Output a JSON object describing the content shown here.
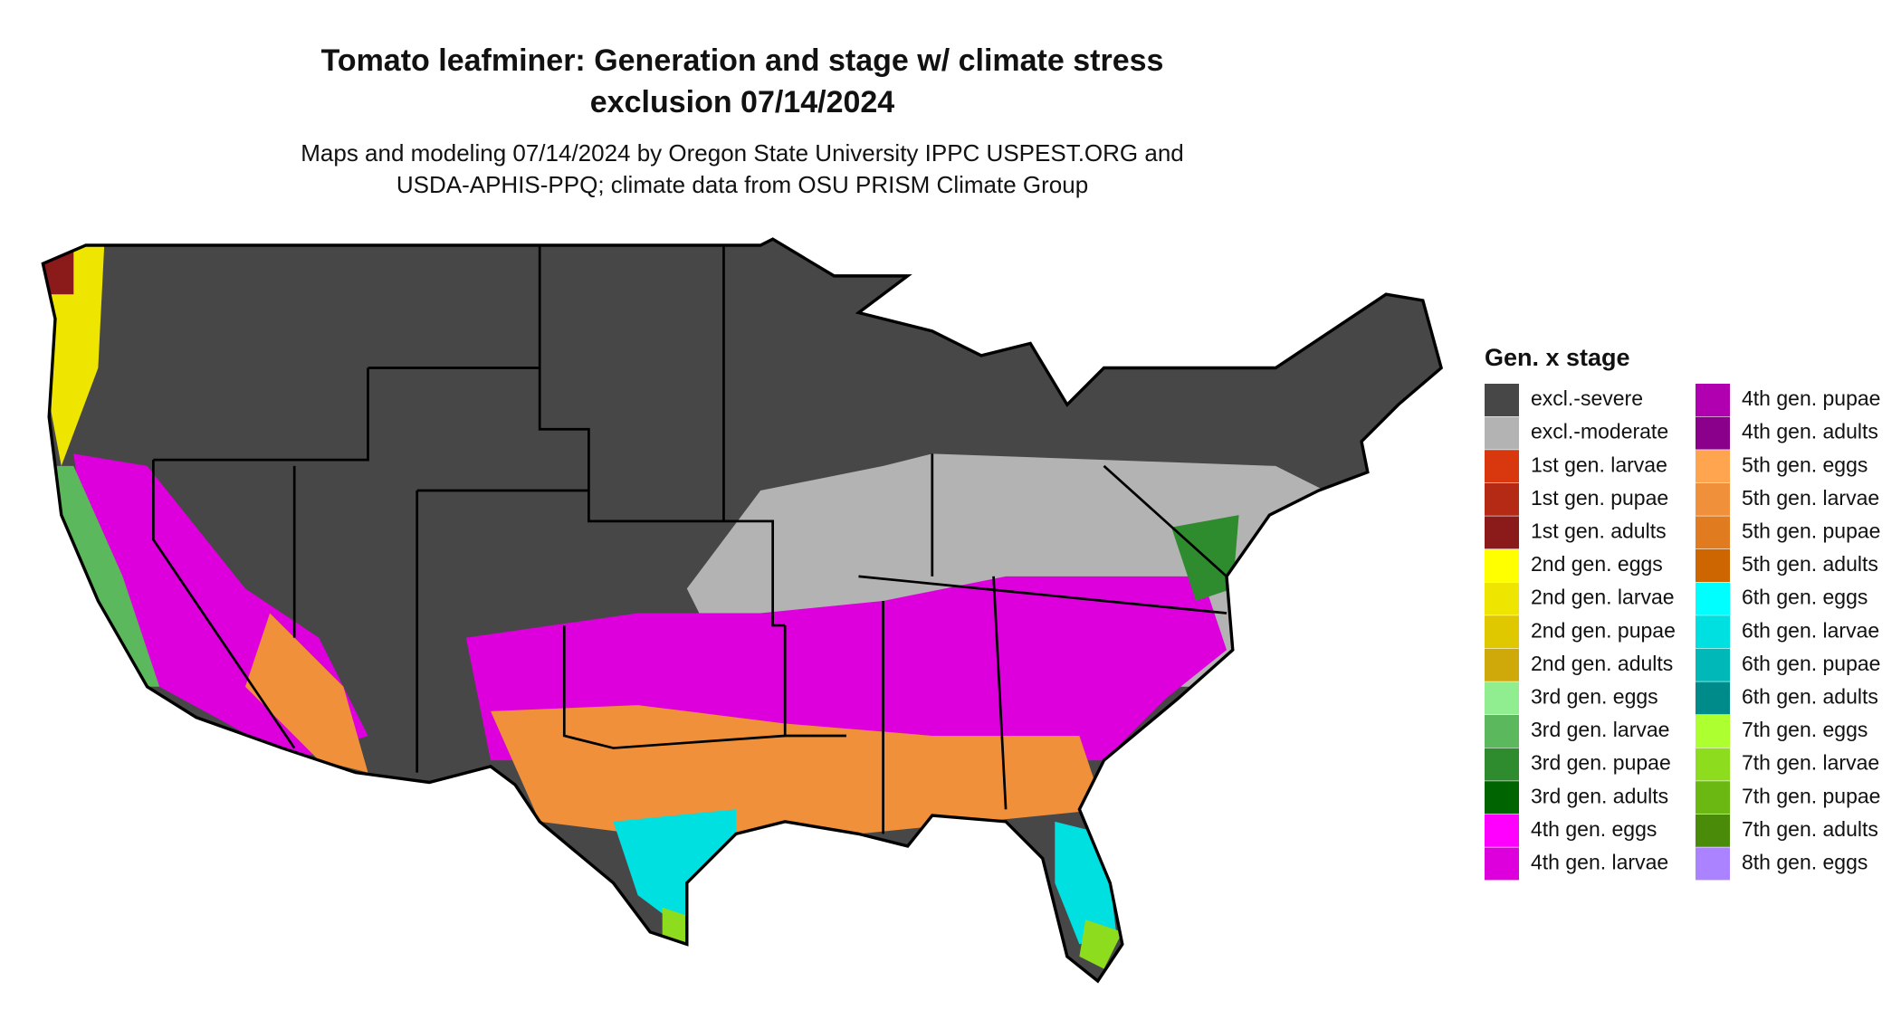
{
  "title": [
    "Tomato leafminer: Generation and stage w/ climate stress",
    "exclusion 07/14/2024"
  ],
  "subtitle": [
    "Maps and modeling 07/14/2024 by Oregon State University IPPC USPEST.ORG and",
    "USDA-APHIS-PPQ; climate data from OSU PRISM Climate Group"
  ],
  "legend": {
    "title": "Gen. x stage",
    "items": [
      {
        "label": "excl.-severe",
        "color": "#474747"
      },
      {
        "label": "excl.-moderate",
        "color": "#b3b3b3"
      },
      {
        "label": "1st gen. larvae",
        "color": "#d9380f"
      },
      {
        "label": "1st gen. pupae",
        "color": "#b52a14"
      },
      {
        "label": "1st gen. adults",
        "color": "#8b1a1a"
      },
      {
        "label": "2nd gen. eggs",
        "color": "#ffff00"
      },
      {
        "label": "2nd gen. larvae",
        "color": "#eee600"
      },
      {
        "label": "2nd gen. pupae",
        "color": "#dfc800"
      },
      {
        "label": "2nd gen. adults",
        "color": "#cfa80a"
      },
      {
        "label": "3rd gen. eggs",
        "color": "#90ee90"
      },
      {
        "label": "3rd gen. larvae",
        "color": "#5cb85c"
      },
      {
        "label": "3rd gen. pupae",
        "color": "#2e8b2e"
      },
      {
        "label": "3rd gen. adults",
        "color": "#006400"
      },
      {
        "label": "4th gen. eggs",
        "color": "#ff00ff"
      },
      {
        "label": "4th gen. larvae",
        "color": "#dd00dd"
      },
      {
        "label": "4th gen. pupae",
        "color": "#b000b0"
      },
      {
        "label": "4th gen. adults",
        "color": "#8b008b"
      },
      {
        "label": "5th gen. eggs",
        "color": "#ffa54f"
      },
      {
        "label": "5th gen. larvae",
        "color": "#f0903a"
      },
      {
        "label": "5th gen. pupae",
        "color": "#e07b20"
      },
      {
        "label": "5th gen. adults",
        "color": "#cd6600"
      },
      {
        "label": "6th gen. eggs",
        "color": "#00ffff"
      },
      {
        "label": "6th gen. larvae",
        "color": "#00e0e0"
      },
      {
        "label": "6th gen. pupae",
        "color": "#00b8b8"
      },
      {
        "label": "6th gen. adults",
        "color": "#008b8b"
      },
      {
        "label": "7th gen. eggs",
        "color": "#adff2f"
      },
      {
        "label": "7th gen. larvae",
        "color": "#8edc1e"
      },
      {
        "label": "7th gen. pupae",
        "color": "#6cb812"
      },
      {
        "label": "7th gen. adults",
        "color": "#4a8c0a"
      },
      {
        "label": "8th gen. eggs",
        "color": "#ab82ff"
      }
    ]
  }
}
